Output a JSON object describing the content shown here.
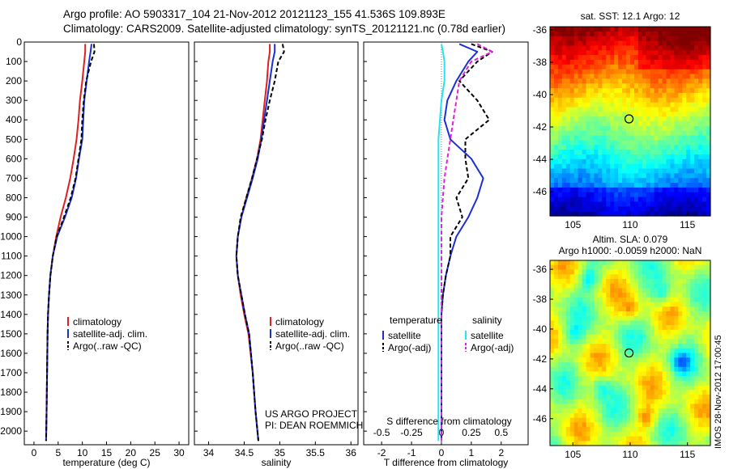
{
  "header": {
    "line1": "Argo profile: AO 5903317_104 21-Nov-2012 20121123_155 41.536S 109.893E",
    "line2": "Climatology: CARS2009. Satellite-adjusted climatology: synTS_20121121.nc (0.78d earlier)"
  },
  "stamp": "IMOS 28-Nov-2012 17:00:45",
  "colors": {
    "climatology": "#e02020",
    "satellite": "#1a2fd6",
    "argo": "#000000",
    "satellite_salinity": "#22e6ee",
    "argo_salinity": "#e023d6"
  },
  "chart_data": [
    {
      "type": "line",
      "xlabel": "temperature (deg C)",
      "xlim": [
        -2,
        32
      ],
      "xticks": [
        0,
        5,
        10,
        15,
        20,
        25,
        30
      ],
      "ylim": [
        0,
        2070
      ],
      "yticks": [
        0,
        100,
        200,
        300,
        400,
        500,
        600,
        700,
        800,
        900,
        1000,
        1100,
        1200,
        1300,
        1400,
        1500,
        1600,
        1700,
        1800,
        1900,
        2000
      ],
      "legend": [
        "climatology",
        "satellite-adj. clim.",
        "Argo(..raw -QC)"
      ],
      "legend_position": "bottom-right",
      "series": [
        {
          "name": "climatology",
          "color": "#e02020",
          "dash": "",
          "x": [
            10.6,
            10.6,
            10.4,
            10.0,
            9.5,
            9.2,
            8.8,
            8.2,
            7.5,
            6.6,
            5.5,
            4.6,
            3.9,
            3.4,
            3.1,
            2.9,
            2.8,
            2.7,
            2.6,
            2.5
          ],
          "y": [
            10,
            50,
            100,
            200,
            300,
            400,
            500,
            600,
            700,
            800,
            900,
            1000,
            1100,
            1200,
            1300,
            1400,
            1500,
            1700,
            1900,
            2050
          ]
        },
        {
          "name": "satellite-adj. clim.",
          "color": "#1a2fd6",
          "dash": "",
          "x": [
            11.9,
            11.7,
            11.4,
            10.9,
            10.4,
            10.2,
            10.0,
            9.3,
            8.7,
            7.8,
            6.4,
            4.8,
            3.9,
            3.4,
            3.1,
            2.9,
            2.8,
            2.7,
            2.6,
            2.5
          ],
          "y": [
            10,
            50,
            100,
            200,
            300,
            400,
            500,
            600,
            700,
            800,
            900,
            1000,
            1100,
            1200,
            1300,
            1400,
            1500,
            1700,
            1900,
            2050
          ]
        },
        {
          "name": "Argo(..raw -QC)",
          "color": "#000000",
          "dash": "5,3",
          "x": [
            12.4,
            12.5,
            11.8,
            10.8,
            10.3,
            10.0,
            9.8,
            9.2,
            8.6,
            7.6,
            6.2,
            4.7,
            3.9,
            3.4,
            3.1,
            2.9,
            2.8,
            2.7,
            2.6,
            2.5
          ],
          "y": [
            10,
            50,
            100,
            200,
            300,
            400,
            500,
            600,
            700,
            800,
            900,
            1000,
            1100,
            1200,
            1300,
            1400,
            1500,
            1700,
            1900,
            2050
          ]
        }
      ]
    },
    {
      "type": "line",
      "xlabel": "salinity",
      "xlim": [
        33.8,
        36.1
      ],
      "xticks": [
        34,
        34.5,
        35,
        35.5,
        36
      ],
      "ylim": [
        0,
        2070
      ],
      "legend": [
        "climatology",
        "satellite-adj. clim.",
        "Argo(..raw -QC)"
      ],
      "legend_position": "bottom-right",
      "annotation": [
        "US ARGO PROJECT",
        "PI: DEAN ROEMMICH"
      ],
      "series": [
        {
          "name": "climatology",
          "color": "#e02020",
          "dash": "",
          "x": [
            34.86,
            34.86,
            34.84,
            34.82,
            34.79,
            34.76,
            34.73,
            34.68,
            34.61,
            34.53,
            34.46,
            34.41,
            34.39,
            34.41,
            34.45,
            34.5,
            34.56,
            34.62,
            34.66,
            34.7
          ],
          "y": [
            10,
            50,
            100,
            200,
            300,
            400,
            500,
            600,
            700,
            800,
            900,
            1000,
            1100,
            1200,
            1300,
            1400,
            1500,
            1700,
            1900,
            2050
          ]
        },
        {
          "name": "satellite-adj. clim.",
          "color": "#1a2fd6",
          "dash": "",
          "x": [
            34.93,
            34.93,
            34.9,
            34.86,
            34.82,
            34.78,
            34.74,
            34.69,
            34.62,
            34.54,
            34.46,
            34.41,
            34.39,
            34.41,
            34.46,
            34.51,
            34.57,
            34.62,
            34.66,
            34.7
          ],
          "y": [
            10,
            50,
            100,
            200,
            300,
            400,
            500,
            600,
            700,
            800,
            900,
            1000,
            1100,
            1200,
            1300,
            1400,
            1500,
            1700,
            1900,
            2050
          ]
        },
        {
          "name": "Argo(..raw -QC)",
          "color": "#000000",
          "dash": "5,3",
          "x": [
            35.04,
            35.06,
            34.98,
            34.93,
            34.86,
            34.8,
            34.75,
            34.68,
            34.61,
            34.53,
            34.45,
            34.41,
            34.39,
            34.41,
            34.46,
            34.51,
            34.57,
            34.62,
            34.66,
            34.7
          ],
          "y": [
            10,
            50,
            100,
            200,
            300,
            400,
            500,
            600,
            700,
            800,
            900,
            1000,
            1100,
            1200,
            1300,
            1400,
            1500,
            1700,
            1900,
            2050
          ]
        }
      ]
    },
    {
      "type": "line",
      "xlabel": "T difference from climatology",
      "xlim": [
        -2.6,
        2.9
      ],
      "xticks": [
        -2,
        -1,
        0,
        1,
        2
      ],
      "top_axis_label": "S difference from climatology",
      "top_axis_ticks": [
        "-0.5",
        "-0.25",
        "0",
        "0.25",
        "0.5"
      ],
      "ylim": [
        0,
        2070
      ],
      "legend": {
        "temperature_title": "temperature",
        "salinity_title": "salinity",
        "items": [
          "satellite",
          "Argo(-adj)",
          "satellite",
          "Argo(-adj)"
        ]
      },
      "legend_position": "bottom-right",
      "series": [
        {
          "name": "satellite",
          "color": "#1a2fd6",
          "dash": "",
          "x": [
            0.6,
            1.2,
            0.9,
            0.5,
            0.2,
            0.1,
            0.3,
            1.0,
            1.4,
            1.2,
            0.9,
            0.5,
            0.3,
            0.15,
            0.05,
            0,
            0,
            0,
            0,
            0
          ],
          "y": [
            10,
            50,
            100,
            200,
            300,
            400,
            500,
            600,
            700,
            800,
            900,
            1000,
            1100,
            1200,
            1300,
            1400,
            1500,
            1700,
            1900,
            2050
          ]
        },
        {
          "name": "Argo(-adj)",
          "color": "#000000",
          "dash": "5,3",
          "x": [
            1.0,
            1.7,
            1.2,
            0.6,
            1.2,
            1.6,
            0.8,
            0.8,
            0.9,
            0.5,
            0.7,
            0.3,
            0.3,
            0.15,
            0.05,
            0,
            0,
            0,
            0,
            0
          ],
          "y": [
            10,
            50,
            100,
            200,
            300,
            400,
            500,
            600,
            700,
            800,
            900,
            1000,
            1100,
            1200,
            1300,
            1400,
            1500,
            1700,
            1900,
            2050
          ]
        },
        {
          "name": "satellite",
          "color": "#22e6ee",
          "dash": "",
          "x": [
            0.0,
            0.05,
            0.1,
            0.1,
            0.0,
            -0.05,
            -0.1,
            -0.1,
            -0.1,
            -0.1,
            -0.1,
            -0.1,
            -0.1,
            -0.1,
            -0.1,
            -0.1,
            -0.1,
            -0.1,
            -0.1,
            -0.1
          ],
          "y": [
            10,
            50,
            100,
            200,
            300,
            400,
            500,
            600,
            700,
            800,
            900,
            1000,
            1100,
            1200,
            1300,
            1400,
            1500,
            1700,
            1900,
            2050
          ]
        },
        {
          "name": "Argo(-adj)",
          "color": "#e023d6",
          "dash": "5,3",
          "x": [
            1.2,
            1.7,
            1.0,
            0.6,
            0.5,
            0.4,
            0.3,
            0.2,
            0.1,
            0.05,
            0.0,
            0.0,
            0.0,
            0.0,
            0.0,
            0.0,
            0.0,
            0.0,
            0.0,
            0.0
          ],
          "y": [
            10,
            50,
            100,
            200,
            300,
            400,
            500,
            600,
            700,
            800,
            900,
            1000,
            1100,
            1200,
            1300,
            1400,
            1500,
            1700,
            1900,
            2050
          ]
        }
      ]
    },
    {
      "type": "heatmap",
      "title": "sat. SST: 12.1  Argo: 12",
      "xlim": [
        103,
        117
      ],
      "ylim": [
        -47.5,
        -35.8
      ],
      "xticks": [
        105,
        110,
        115
      ],
      "yticks": [
        -36,
        -38,
        -40,
        -42,
        -44,
        -46
      ],
      "marker": {
        "lon": 109.9,
        "lat": -41.5
      }
    },
    {
      "type": "heatmap",
      "title_lines": [
        "Altim. SLA: 0.079",
        "Argo h1000: -0.0059 h2000: NaN"
      ],
      "xlim": [
        103,
        117
      ],
      "ylim": [
        -47.8,
        -35.4
      ],
      "xticks": [
        105,
        110,
        115
      ],
      "yticks": [
        -36,
        -38,
        -40,
        -42,
        -44,
        -46
      ],
      "marker": {
        "lon": 109.9,
        "lat": -41.6
      }
    }
  ]
}
